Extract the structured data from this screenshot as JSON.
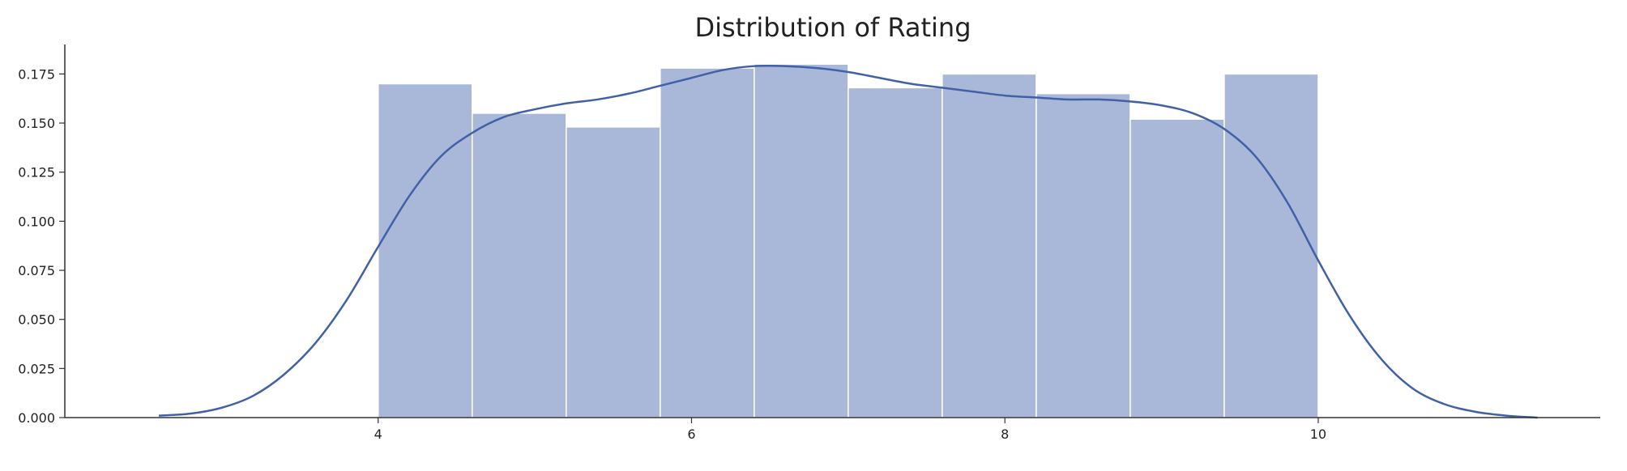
{
  "colors": {
    "bar_fill": "#a9b8d9",
    "bar_edge": "#ffffff",
    "kde_line": "#4161a7",
    "axis": "#333333"
  },
  "chart_data": {
    "type": "bar",
    "subtype": "histogram-with-kde",
    "title": "Distribution of Rating",
    "xlabel": "",
    "ylabel": "",
    "xlim": [
      2.0,
      11.8
    ],
    "ylim": [
      0.0,
      0.19
    ],
    "grid": false,
    "legend": "none",
    "x_ticks": [
      4,
      6,
      8,
      10
    ],
    "x_tick_labels": [
      "4",
      "6",
      "8",
      "10"
    ],
    "y_ticks": [
      0.0,
      0.025,
      0.05,
      0.075,
      0.1,
      0.125,
      0.15,
      0.175
    ],
    "y_tick_labels": [
      "0.000",
      "0.025",
      "0.050",
      "0.075",
      "0.100",
      "0.125",
      "0.150",
      "0.175"
    ],
    "bins": [
      {
        "x0": 4.0,
        "x1": 4.6,
        "value": 0.17
      },
      {
        "x0": 4.6,
        "x1": 5.2,
        "value": 0.155
      },
      {
        "x0": 5.2,
        "x1": 5.8,
        "value": 0.148
      },
      {
        "x0": 5.8,
        "x1": 6.4,
        "value": 0.178
      },
      {
        "x0": 6.4,
        "x1": 7.0,
        "value": 0.18
      },
      {
        "x0": 7.0,
        "x1": 7.6,
        "value": 0.168
      },
      {
        "x0": 7.6,
        "x1": 8.2,
        "value": 0.175
      },
      {
        "x0": 8.2,
        "x1": 8.8,
        "value": 0.165
      },
      {
        "x0": 8.8,
        "x1": 9.4,
        "value": 0.152
      },
      {
        "x0": 9.4,
        "x1": 10.0,
        "value": 0.175
      }
    ],
    "kde": {
      "x": [
        2.6,
        2.8,
        3.0,
        3.2,
        3.4,
        3.6,
        3.8,
        4.0,
        4.2,
        4.4,
        4.6,
        4.8,
        5.0,
        5.2,
        5.4,
        5.6,
        5.8,
        6.0,
        6.2,
        6.4,
        6.6,
        6.8,
        7.0,
        7.2,
        7.4,
        7.6,
        7.8,
        8.0,
        8.2,
        8.4,
        8.6,
        8.8,
        9.0,
        9.2,
        9.4,
        9.6,
        9.8,
        10.0,
        10.2,
        10.4,
        10.6,
        10.8,
        11.0,
        11.2,
        11.4
      ],
      "y": [
        0.001,
        0.002,
        0.005,
        0.011,
        0.022,
        0.038,
        0.06,
        0.087,
        0.113,
        0.133,
        0.145,
        0.153,
        0.157,
        0.16,
        0.162,
        0.165,
        0.169,
        0.173,
        0.177,
        0.179,
        0.179,
        0.178,
        0.176,
        0.173,
        0.17,
        0.168,
        0.166,
        0.164,
        0.163,
        0.162,
        0.162,
        0.161,
        0.159,
        0.155,
        0.147,
        0.133,
        0.11,
        0.08,
        0.052,
        0.03,
        0.015,
        0.007,
        0.003,
        0.001,
        0.0
      ]
    }
  }
}
